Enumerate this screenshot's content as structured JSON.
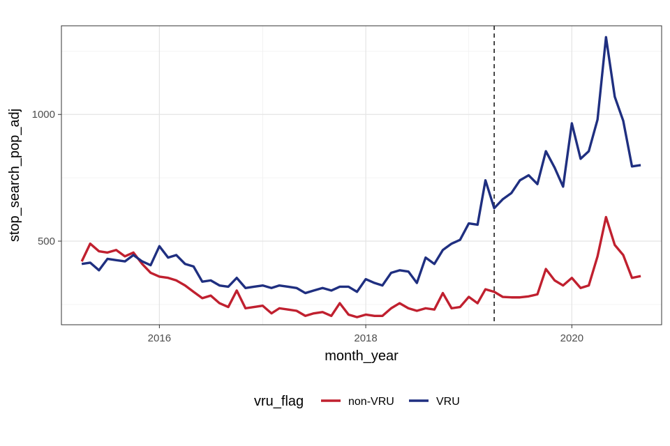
{
  "chart_data": {
    "type": "line",
    "xlabel": "month_year",
    "ylabel": "stop_search_pop_adj",
    "x_ticks": [
      "2016",
      "2018",
      "2020"
    ],
    "y_ticks": [
      "500",
      "1000"
    ],
    "xlim": [
      "2015-01-19",
      "2020-11-14"
    ],
    "ylim": [
      170,
      1350
    ],
    "grid": true,
    "legend": {
      "title": "vru_flag",
      "position": "bottom"
    },
    "vline": {
      "x": "2019-04-01",
      "style": "dashed",
      "color": "#333333"
    },
    "x": [
      "2015-04",
      "2015-05",
      "2015-06",
      "2015-07",
      "2015-08",
      "2015-09",
      "2015-10",
      "2015-11",
      "2015-12",
      "2016-01",
      "2016-02",
      "2016-03",
      "2016-04",
      "2016-05",
      "2016-06",
      "2016-07",
      "2016-08",
      "2016-09",
      "2016-10",
      "2016-11",
      "2016-12",
      "2017-01",
      "2017-02",
      "2017-03",
      "2017-04",
      "2017-05",
      "2017-06",
      "2017-07",
      "2017-08",
      "2017-09",
      "2017-10",
      "2017-11",
      "2017-12",
      "2018-01",
      "2018-02",
      "2018-03",
      "2018-04",
      "2018-05",
      "2018-06",
      "2018-07",
      "2018-08",
      "2018-09",
      "2018-10",
      "2018-11",
      "2018-12",
      "2019-01",
      "2019-02",
      "2019-03",
      "2019-04",
      "2019-05",
      "2019-06",
      "2019-07",
      "2019-08",
      "2019-09",
      "2019-10",
      "2019-11",
      "2019-12",
      "2020-01",
      "2020-02",
      "2020-03",
      "2020-04",
      "2020-05",
      "2020-06",
      "2020-07",
      "2020-08",
      "2020-09"
    ],
    "series": [
      {
        "name": "non-VRU",
        "color": "#c0202f",
        "values": [
          420,
          490,
          460,
          455,
          465,
          440,
          455,
          410,
          375,
          360,
          355,
          345,
          325,
          300,
          275,
          285,
          255,
          240,
          305,
          235,
          240,
          245,
          215,
          235,
          230,
          225,
          205,
          215,
          220,
          205,
          255,
          210,
          200,
          210,
          205,
          205,
          235,
          255,
          235,
          225,
          235,
          230,
          295,
          235,
          240,
          280,
          255,
          310,
          300,
          280,
          278,
          278,
          282,
          290,
          390,
          345,
          325,
          355,
          315,
          325,
          440,
          595,
          485,
          445,
          355,
          362
        ]
      },
      {
        "name": "VRU",
        "color": "#1f2f80",
        "values": [
          410,
          415,
          385,
          430,
          425,
          420,
          445,
          420,
          405,
          480,
          435,
          445,
          410,
          400,
          340,
          345,
          325,
          320,
          355,
          315,
          320,
          325,
          315,
          325,
          320,
          315,
          295,
          305,
          315,
          305,
          320,
          320,
          300,
          350,
          335,
          325,
          375,
          385,
          380,
          335,
          435,
          410,
          465,
          490,
          505,
          570,
          565,
          740,
          630,
          665,
          690,
          740,
          760,
          725,
          855,
          790,
          715,
          965,
          825,
          855,
          980,
          1305,
          1070,
          975,
          795,
          800
        ]
      }
    ]
  }
}
